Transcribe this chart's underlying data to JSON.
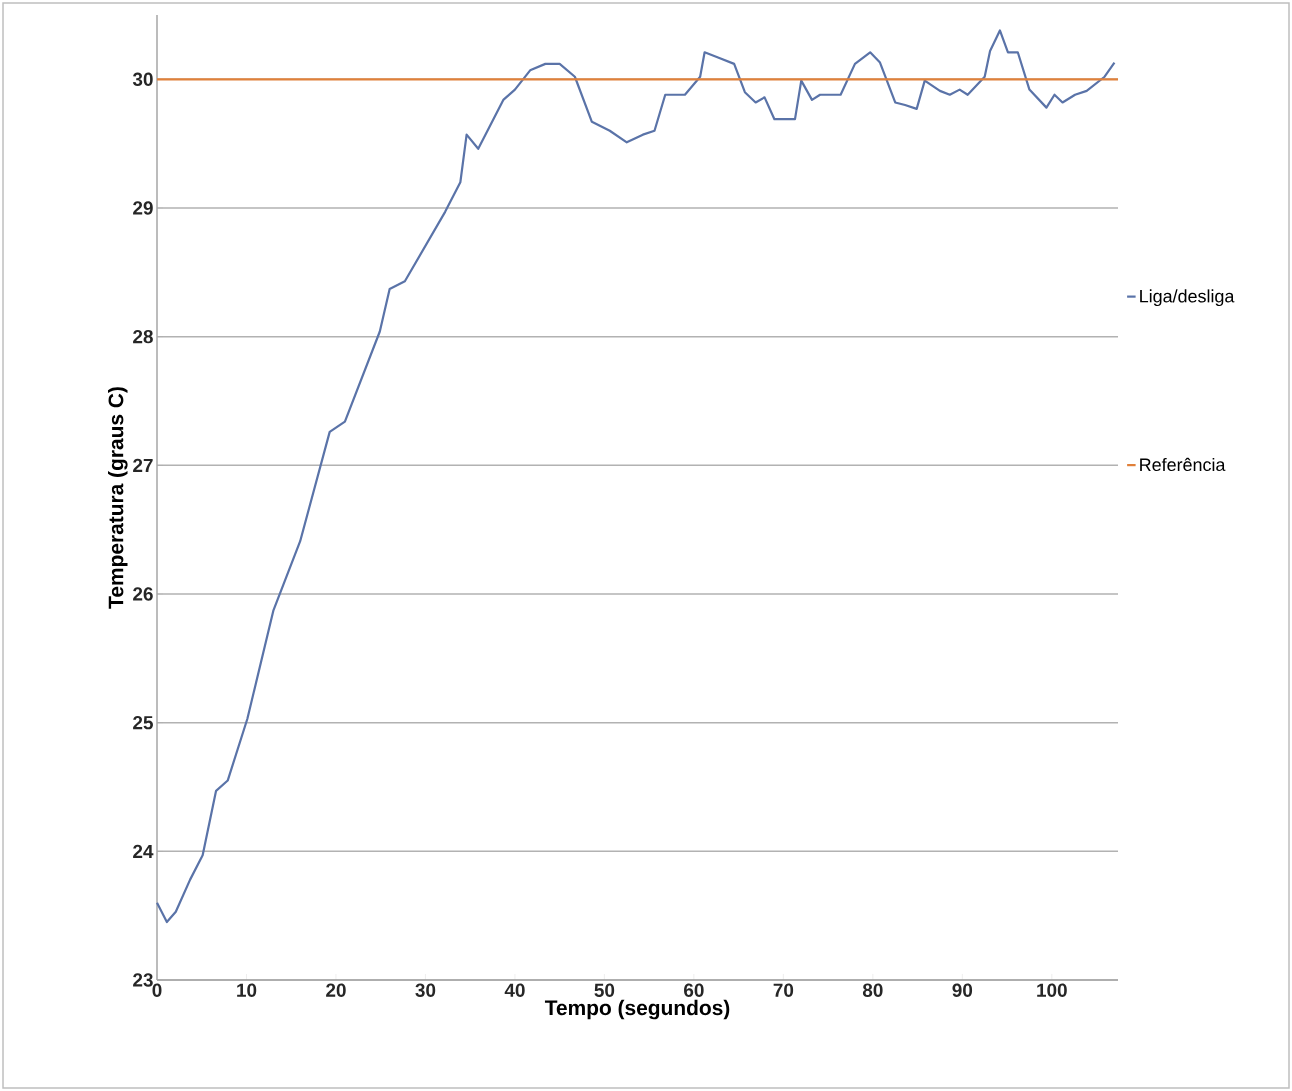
{
  "chart_data": {
    "type": "line",
    "xlabel": "Tempo (segundos)",
    "ylabel": "Temperatura (graus C)",
    "xlim": [
      0,
      107.4
    ],
    "ylim": [
      23,
      30.5
    ],
    "xticks": [
      0,
      10,
      20,
      30,
      40,
      50,
      60,
      70,
      80,
      90,
      100
    ],
    "yticks": [
      23,
      24,
      25,
      26,
      27,
      28,
      29,
      30
    ],
    "grid": "y",
    "legend": "right",
    "marker": "none",
    "line_style": "solid",
    "series": [
      {
        "name": "Liga/desliga",
        "color": "#5a73a8",
        "x": [
          0,
          1.1,
          2.1,
          3.7,
          5.1,
          6.6,
          7.9,
          10.1,
          13,
          16,
          19.3,
          21,
          24.9,
          26,
          27.7,
          32.2,
          33.9,
          34.6,
          35.9,
          38.7,
          40,
          41.7,
          43.4,
          45,
          46.7,
          48.6,
          50.6,
          52.5,
          54.3,
          55.6,
          56.8,
          59,
          60.7,
          61.2,
          62.7,
          64.5,
          65.7,
          66.9,
          67.9,
          69,
          71.3,
          72,
          73.2,
          74.1,
          76.4,
          78,
          79.7,
          80.8,
          82.5,
          83.6,
          84.9,
          85.8,
          87.5,
          88.6,
          89.7,
          90.6,
          92.5,
          93.1,
          94.2,
          95.1,
          96.2,
          97.5,
          99.4,
          100.3,
          101.2,
          102.6,
          103.9,
          105.9,
          107
        ],
        "values": [
          23.6,
          23.45,
          23.53,
          23.78,
          23.97,
          24.47,
          24.55,
          25.03,
          25.87,
          26.41,
          27.26,
          27.34,
          28.04,
          28.37,
          28.43,
          28.97,
          29.2,
          29.57,
          29.46,
          29.84,
          29.92,
          30.07,
          30.12,
          30.12,
          30.02,
          29.67,
          29.6,
          29.51,
          29.57,
          29.6,
          29.88,
          29.88,
          30.02,
          30.21,
          30.17,
          30.12,
          29.9,
          29.82,
          29.86,
          29.69,
          29.69,
          29.99,
          29.84,
          29.88,
          29.88,
          30.12,
          30.21,
          30.13,
          29.82,
          29.8,
          29.77,
          29.99,
          29.91,
          29.88,
          29.92,
          29.88,
          30.02,
          30.22,
          30.38,
          30.21,
          30.21,
          29.92,
          29.78,
          29.88,
          29.82,
          29.88,
          29.91,
          30.02,
          30.13
        ]
      },
      {
        "name": "Referência",
        "color": "#e0803a",
        "x": [
          0,
          107.4
        ],
        "values": [
          30,
          30
        ]
      }
    ]
  }
}
